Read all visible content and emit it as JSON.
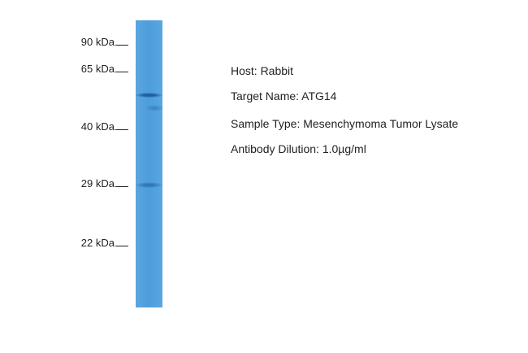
{
  "markers": [
    "90 kDa",
    "65 kDa",
    "40 kDa",
    "29 kDa",
    "22 kDa"
  ],
  "lane_color": "#4d9ddc",
  "band_color": "#1f5fa0",
  "info": {
    "host": "Host: Rabbit",
    "target": "Target Name: ATG14",
    "sample": "Sample Type: Mesenchymoma Tumor Lysate",
    "dilution": "Antibody Dilution: 1.0µg/ml"
  }
}
